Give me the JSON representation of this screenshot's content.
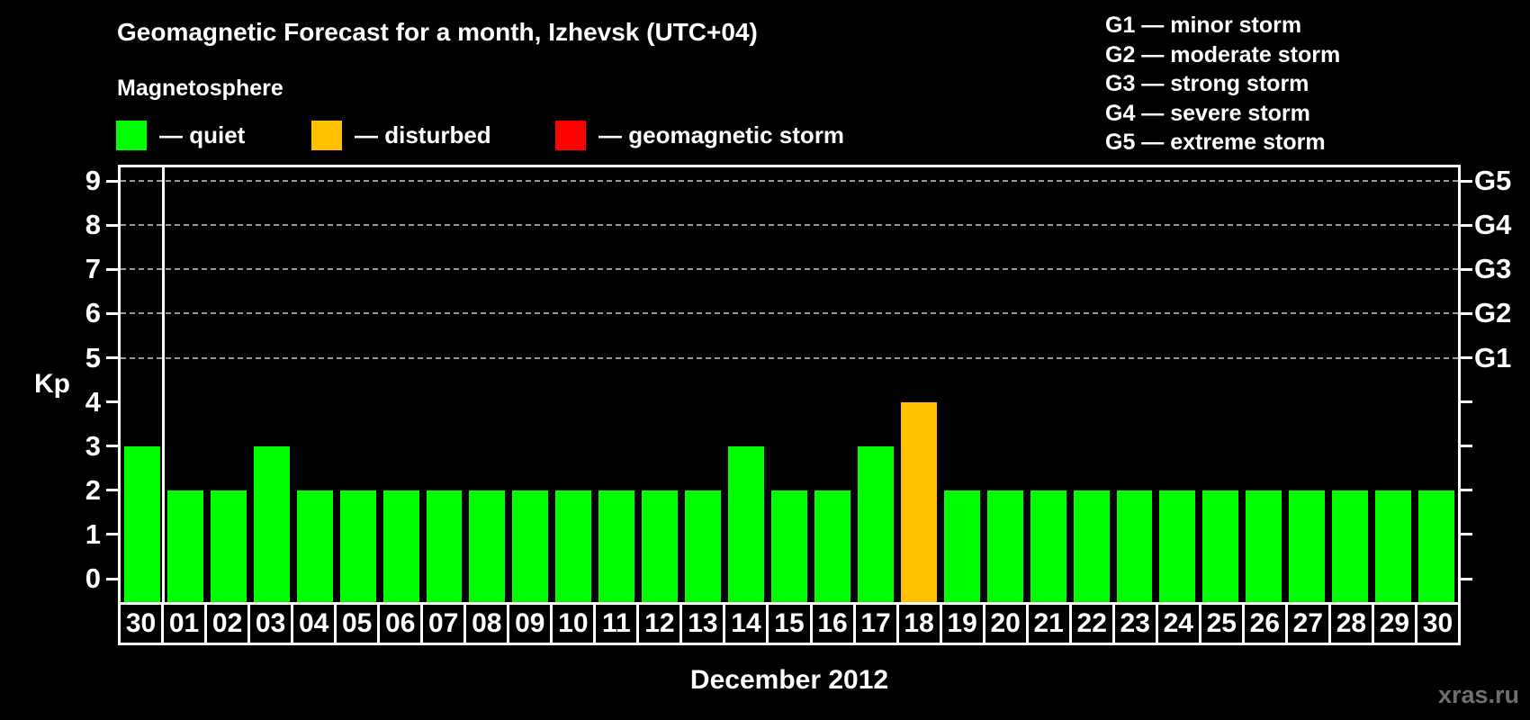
{
  "header": {
    "title": "Geomagnetic Forecast for a month, Izhevsk (UTC+04)",
    "subtitle": "Magnetosphere"
  },
  "legend": {
    "items": [
      {
        "label": "— quiet",
        "status": "quiet",
        "color": "#00ff00"
      },
      {
        "label": "— disturbed",
        "status": "disturbed",
        "color": "#ffc000"
      },
      {
        "label": "— geomagnetic storm",
        "status": "storm",
        "color": "#ff0000"
      }
    ]
  },
  "g_legend": {
    "items": [
      "G1 — minor storm",
      "G2 — moderate storm",
      "G3 — strong storm",
      "G4 — severe storm",
      "G5 — extreme storm"
    ]
  },
  "chart_data": {
    "type": "bar",
    "title": "Geomagnetic Forecast for a month, Izhevsk (UTC+04)",
    "xlabel": "December 2012",
    "ylabel": "Kp",
    "ylim": [
      0,
      9
    ],
    "grid": "horizontal dashed lines at Kp 5,6,7,8,9",
    "legend_position": "top-left",
    "categories": [
      "30",
      "01",
      "02",
      "03",
      "04",
      "05",
      "06",
      "07",
      "08",
      "09",
      "10",
      "11",
      "12",
      "13",
      "14",
      "15",
      "16",
      "17",
      "18",
      "19",
      "20",
      "21",
      "22",
      "23",
      "24",
      "25",
      "26",
      "27",
      "28",
      "29",
      "30"
    ],
    "values": [
      3,
      2,
      2,
      3,
      2,
      2,
      2,
      2,
      2,
      2,
      2,
      2,
      2,
      2,
      3,
      2,
      2,
      3,
      4,
      2,
      2,
      2,
      2,
      2,
      2,
      2,
      2,
      2,
      2,
      2,
      2
    ],
    "statuses": [
      "quiet",
      "quiet",
      "quiet",
      "quiet",
      "quiet",
      "quiet",
      "quiet",
      "quiet",
      "quiet",
      "quiet",
      "quiet",
      "quiet",
      "quiet",
      "quiet",
      "quiet",
      "quiet",
      "quiet",
      "quiet",
      "disturbed",
      "quiet",
      "quiet",
      "quiet",
      "quiet",
      "quiet",
      "quiet",
      "quiet",
      "quiet",
      "quiet",
      "quiet",
      "quiet",
      "quiet"
    ],
    "prev_month_separator_after_index": 0,
    "y_ticks": [
      0,
      1,
      2,
      3,
      4,
      5,
      6,
      7,
      8,
      9
    ],
    "right_axis_labels": [
      {
        "label": "G1",
        "kp": 5
      },
      {
        "label": "G2",
        "kp": 6
      },
      {
        "label": "G3",
        "kp": 7
      },
      {
        "label": "G4",
        "kp": 8
      },
      {
        "label": "G5",
        "kp": 9
      }
    ],
    "status_colors": {
      "quiet": "#00ff00",
      "disturbed": "#ffc000",
      "storm": "#ff0000"
    }
  },
  "footer": {
    "month_label": "December 2012",
    "watermark": "xras.ru"
  }
}
